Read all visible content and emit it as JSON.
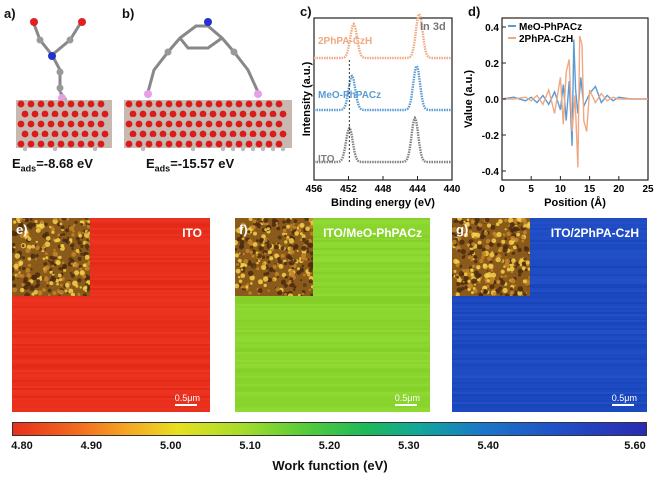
{
  "panels": {
    "a": {
      "label": "a)",
      "eads_prefix": "E",
      "eads_sub": "ads",
      "eads_value": "=-8.68 eV"
    },
    "b": {
      "label": "b)",
      "eads_prefix": "E",
      "eads_sub": "ads",
      "eads_value": "=-15.57 eV"
    },
    "c": {
      "label": "c)"
    },
    "d": {
      "label": "d)"
    },
    "e": {
      "label": "e)",
      "title": "ITO",
      "scale": "0.5μm",
      "level": 4.8
    },
    "f": {
      "label": "f)",
      "title": "ITO/MeO-PhPACz",
      "scale": "0.5μm",
      "level": 5.1
    },
    "g": {
      "label": "g)",
      "title": "ITO/2PhPA-CzH",
      "scale": "0.5μm",
      "level": 5.55
    }
  },
  "colors": {
    "peach": "#f0a882",
    "blue": "#5b9bd5",
    "gray": "#808080",
    "ito_map": "#f57a26",
    "meo_map": "#8ad42e",
    "cz_map": "#1b3fbf"
  },
  "chart_data": [
    {
      "type": "line",
      "panel": "c",
      "title": "",
      "annotation": "In 3d",
      "xlabel": "Binding energy (eV)",
      "ylabel": "Intensity (a.u.)",
      "xlim": [
        456,
        440
      ],
      "x_ticks": [
        "456",
        "452",
        "448",
        "444",
        "440"
      ],
      "series": [
        {
          "name": "2PhPA-CzH",
          "peak1": 451.4,
          "peak2": 443.8,
          "offset": 2.0
        },
        {
          "name": "MeO-PhPACz",
          "peak1": 451.6,
          "peak2": 444.1,
          "offset": 1.0
        },
        {
          "name": "ITO",
          "peak1": 451.9,
          "peak2": 444.3,
          "offset": 0.0
        }
      ],
      "reference_line_x": 451.9
    },
    {
      "type": "line",
      "panel": "d",
      "title": "",
      "xlabel": "Position (Å)",
      "ylabel": "Value (a.u.)",
      "xlim": [
        0,
        25
      ],
      "ylim": [
        -0.45,
        0.45
      ],
      "x_ticks": [
        "0",
        "5",
        "10",
        "15",
        "20",
        "25"
      ],
      "y_ticks": [
        "-0.4",
        "-0.2",
        "0.0",
        "0.2",
        "0.4"
      ],
      "legend": "top-left",
      "series": [
        {
          "name": "MeO-PhPACz",
          "x": [
            0,
            2,
            4,
            5,
            6,
            7,
            8,
            9,
            10,
            10.5,
            11,
            11.5,
            12,
            12.3,
            12.6,
            13,
            13.5,
            14,
            15,
            16,
            17,
            18,
            19,
            20,
            22,
            25
          ],
          "y": [
            0,
            0.01,
            -0.01,
            0.01,
            -0.02,
            0.02,
            -0.03,
            0.04,
            -0.06,
            0.08,
            -0.12,
            0.1,
            -0.26,
            0.33,
            0.05,
            -0.08,
            0.12,
            -0.04,
            0.03,
            0.07,
            -0.02,
            0.02,
            -0.01,
            0.01,
            0,
            0
          ]
        },
        {
          "name": "2PhPA-CzH",
          "x": [
            0,
            2,
            4,
            5,
            6,
            7,
            8,
            9,
            10,
            10.5,
            11,
            11.5,
            12,
            12.5,
            13,
            13.3,
            13.7,
            14,
            14.5,
            15,
            16,
            17,
            18,
            19,
            20,
            22,
            25
          ],
          "y": [
            0,
            0.0,
            0.01,
            -0.01,
            0.02,
            -0.03,
            0.05,
            -0.08,
            0.12,
            -0.14,
            0.15,
            0.22,
            -0.18,
            0.02,
            -0.38,
            0.35,
            0.3,
            -0.12,
            -0.18,
            0.05,
            -0.02,
            0.03,
            -0.01,
            0.01,
            0,
            0,
            0
          ]
        }
      ]
    },
    {
      "type": "heatmap",
      "panel": "colorbar",
      "xlabel": "Work function (eV)",
      "range": [
        4.8,
        5.6
      ],
      "ticks": [
        "4.80",
        "4.90",
        "5.00",
        "5.10",
        "5.20",
        "5.30",
        "5.40",
        "5.60"
      ]
    }
  ]
}
